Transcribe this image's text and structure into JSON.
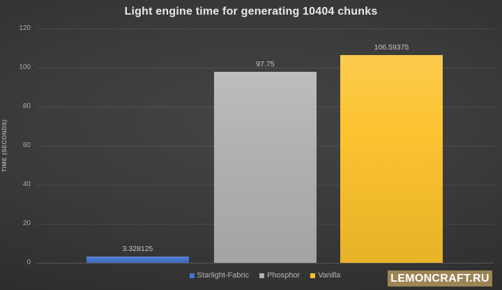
{
  "title": "Light engine time for generating 10404 chunks",
  "chart_data": {
    "type": "bar",
    "title": "Light engine time for generating 10404 chunks",
    "ylabel": "TIME (SECONDS)",
    "xlabel": "",
    "ylim": [
      0,
      120
    ],
    "yticks": [
      0,
      20,
      40,
      60,
      80,
      100,
      120
    ],
    "grid": true,
    "legend_position": "bottom",
    "series": [
      {
        "name": "Starlight-Fabric",
        "value": 3.328125,
        "label": "3.328125",
        "color": "#4273cc"
      },
      {
        "name": "Phosphor",
        "value": 97.75,
        "label": "97.75",
        "color": "#b1b1b1"
      },
      {
        "name": "Vanilla",
        "value": 106.59375,
        "label": "106.59375",
        "color": "#fcc22d"
      }
    ]
  },
  "watermark": {
    "text": "LEMONCRAFT.RU",
    "bg_color": "#9c8455",
    "text_color": "#ffffff"
  }
}
